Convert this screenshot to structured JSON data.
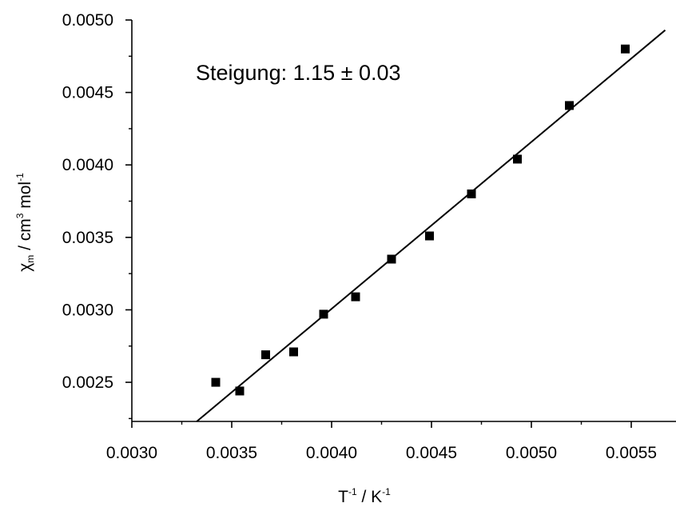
{
  "chart_data": {
    "type": "scatter",
    "title": "",
    "annotation": "Steigung: 1.15 ± 0.03",
    "xlabel": {
      "base_1": "T",
      "sup_1": "-1",
      "base_2": " / K",
      "sup_2": "-1"
    },
    "ylabel": {
      "base_1": "χ",
      "sub_1": "m",
      "base_2": " / cm",
      "sup_2": "3",
      "base_3": " mol",
      "sup_3": "-1"
    },
    "xlim": [
      0.003,
      0.0057
    ],
    "ylim": [
      0.00223,
      0.005
    ],
    "xticks": [
      {
        "value": 0.003,
        "label": "0.0030"
      },
      {
        "value": 0.0035,
        "label": "0.0035"
      },
      {
        "value": 0.004,
        "label": "0.0040"
      },
      {
        "value": 0.0045,
        "label": "0.0045"
      },
      {
        "value": 0.005,
        "label": "0.0050"
      },
      {
        "value": 0.0055,
        "label": "0.0055"
      }
    ],
    "yticks": [
      {
        "value": 0.0025,
        "label": "0.0025"
      },
      {
        "value": 0.003,
        "label": "0.0030"
      },
      {
        "value": 0.0035,
        "label": "0.0035"
      },
      {
        "value": 0.004,
        "label": "0.0040"
      },
      {
        "value": 0.0045,
        "label": "0.0045"
      },
      {
        "value": 0.005,
        "label": "0.0050"
      }
    ],
    "series": [
      {
        "kind": "points",
        "marker": "square",
        "color": "#000000",
        "points": [
          {
            "x": 0.00342,
            "y": 0.0025
          },
          {
            "x": 0.00354,
            "y": 0.00244
          },
          {
            "x": 0.00367,
            "y": 0.00269
          },
          {
            "x": 0.00381,
            "y": 0.00271
          },
          {
            "x": 0.00396,
            "y": 0.00297
          },
          {
            "x": 0.00412,
            "y": 0.00309
          },
          {
            "x": 0.0043,
            "y": 0.00335
          },
          {
            "x": 0.00449,
            "y": 0.00351
          },
          {
            "x": 0.0047,
            "y": 0.0038
          },
          {
            "x": 0.00493,
            "y": 0.00404
          },
          {
            "x": 0.00519,
            "y": 0.00441
          },
          {
            "x": 0.00547,
            "y": 0.0048
          }
        ]
      },
      {
        "kind": "fit-line",
        "color": "#000000",
        "points": [
          {
            "x": 0.003325,
            "y": 0.00223
          },
          {
            "x": 0.00567,
            "y": 0.00493
          }
        ]
      }
    ],
    "grid": false,
    "legend": "none"
  }
}
